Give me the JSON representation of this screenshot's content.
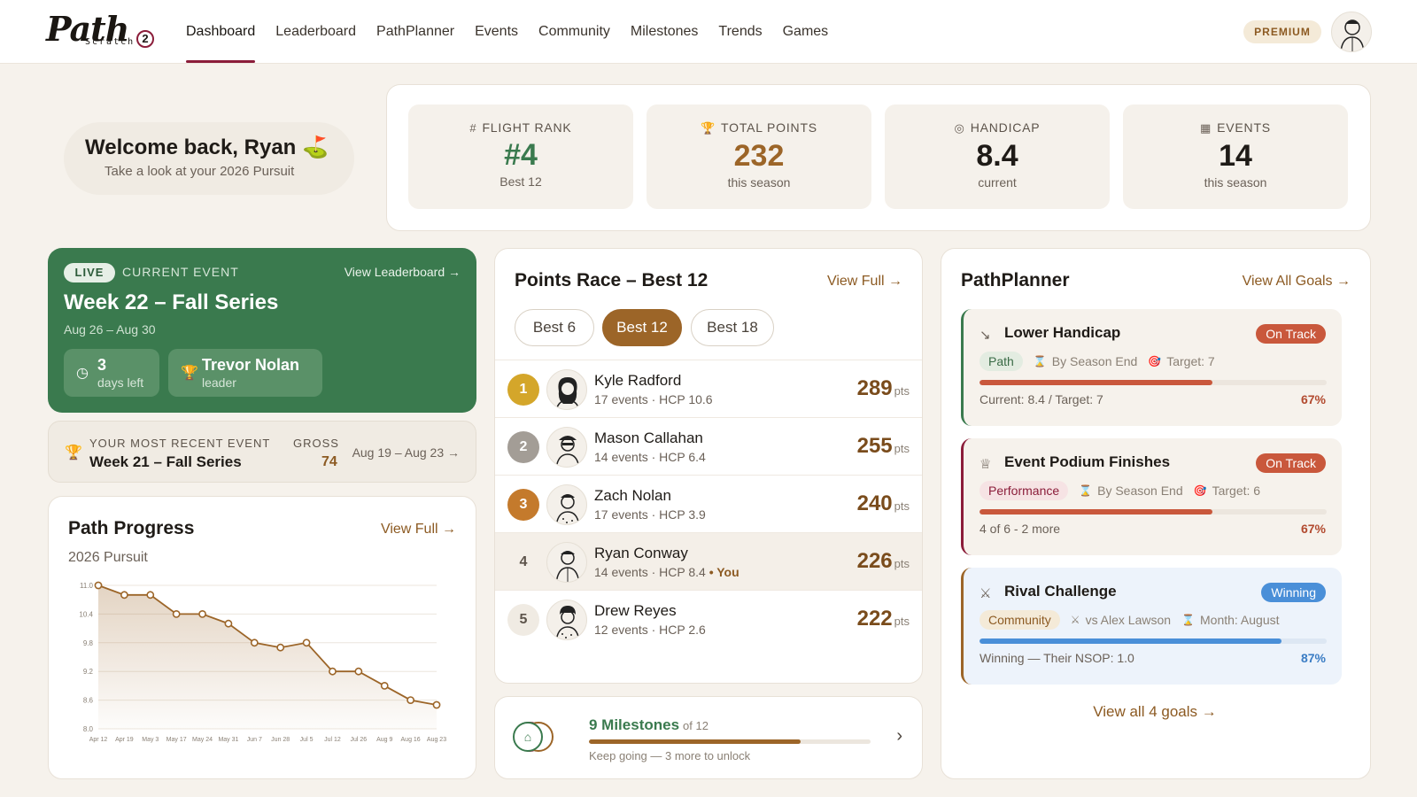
{
  "app": {
    "logo_text": "Path",
    "logo_sub": "Scratch",
    "logo_num": "2"
  },
  "nav": {
    "items": [
      {
        "label": "Dashboard",
        "active": true
      },
      {
        "label": "Leaderboard"
      },
      {
        "label": "PathPlanner"
      },
      {
        "label": "Events"
      },
      {
        "label": "Community"
      },
      {
        "label": "Milestones"
      },
      {
        "label": "Trends"
      },
      {
        "label": "Games"
      }
    ],
    "premium_label": "PREMIUM"
  },
  "welcome": {
    "title": "Welcome back, Ryan",
    "emoji": "⛳",
    "subtitle": "Take a look at your 2026 Pursuit"
  },
  "stats": [
    {
      "icon": "#",
      "label": "FLIGHT RANK",
      "value": "#4",
      "sub": "Best 12",
      "color": "#3a7a4e"
    },
    {
      "icon": "🏆",
      "label": "TOTAL POINTS",
      "value": "232",
      "sub": "this season",
      "color": "#9c6528"
    },
    {
      "icon": "◎",
      "label": "HANDICAP",
      "value": "8.4",
      "sub": "current",
      "color": "#1f1b17"
    },
    {
      "icon": "▦",
      "label": "EVENTS",
      "value": "14",
      "sub": "this season",
      "color": "#1f1b17"
    }
  ],
  "current_event": {
    "live_label": "LIVE",
    "section_label": "CURRENT EVENT",
    "view_link": "View Leaderboard →",
    "title": "Week 22 – Fall Series",
    "dates": "Aug 26 – Aug 30",
    "days_value": "3",
    "days_label": "days left",
    "leader_name": "Trevor Nolan",
    "leader_label": "leader"
  },
  "recent_event": {
    "label": "YOUR MOST RECENT EVENT",
    "name": "Week 21 – Fall Series",
    "gross_label": "GROSS",
    "gross_value": "74",
    "dates": "Aug 19 – Aug 23 →"
  },
  "path_progress": {
    "title": "Path Progress",
    "link": "View Full →",
    "subtitle": "2026 Pursuit"
  },
  "chart_data": {
    "type": "line",
    "x": [
      "Apr 12",
      "Apr 19",
      "May 3",
      "May 17",
      "May 24",
      "May 31",
      "Jun 7",
      "Jun 28",
      "Jul 5",
      "Jul 12",
      "Jul 26",
      "Aug 9",
      "Aug 16",
      "Aug 23"
    ],
    "values": [
      11.0,
      10.8,
      10.8,
      10.4,
      10.4,
      10.2,
      9.8,
      9.7,
      9.8,
      9.2,
      9.2,
      8.9,
      8.6,
      8.5
    ],
    "yticks": [
      "11.0",
      "10.4",
      "9.8",
      "9.2",
      "8.6",
      "8.0"
    ],
    "ylim": [
      8.0,
      11.0
    ],
    "grid": true,
    "color": "#9c6528"
  },
  "points_race": {
    "title": "Points Race – Best 12",
    "link": "View Full →",
    "pills": [
      {
        "label": "Best 6"
      },
      {
        "label": "Best 12",
        "active": true
      },
      {
        "label": "Best 18"
      }
    ],
    "players": [
      {
        "rank": "1",
        "name": "Kyle Radford",
        "meta": "17 events · HCP 10.6",
        "you": "",
        "points": "289",
        "rank_color": "#d4a62a"
      },
      {
        "rank": "2",
        "name": "Mason Callahan",
        "meta": "14 events · HCP 6.4",
        "you": "",
        "points": "255",
        "rank_color": "#a39d96"
      },
      {
        "rank": "3",
        "name": "Zach Nolan",
        "meta": "17 events · HCP 3.9",
        "you": "",
        "points": "240",
        "rank_color": "#c47a2c"
      },
      {
        "rank": "4",
        "name": "Ryan Conway",
        "meta": "14 events · HCP 8.4",
        "you": " • You",
        "points": "226",
        "rank_color": ""
      },
      {
        "rank": "5",
        "name": "Drew Reyes",
        "meta": "12 events · HCP 2.6",
        "you": "",
        "points": "222",
        "rank_color": ""
      }
    ],
    "pts_unit": "pts"
  },
  "milestones": {
    "count": "9 Milestones",
    "of_label": "of 12",
    "progress": 0.75,
    "subtitle": "Keep going — 3 more to unlock",
    "icon": "⌂"
  },
  "pathplanner": {
    "title": "PathPlanner",
    "link": "View All Goals →",
    "goals": [
      {
        "icon": "↘",
        "title": "Lower Handicap",
        "badge": "On Track",
        "badge_color": "#c9583c",
        "tag": "Path",
        "tag_bg": "#e3ece1",
        "tag_color": "#3a6b46",
        "deadline": "By Season End",
        "target": "Target: 7",
        "progress": 0.67,
        "bar_color": "#c9583c",
        "status": "Current: 8.4 / Target: 7",
        "pct": "67%",
        "pct_color": "#b24a2f",
        "border": "#3a7a4e"
      },
      {
        "icon": "♕",
        "title": "Event Podium Finishes",
        "badge": "On Track",
        "badge_color": "#c9583c",
        "tag": "Performance",
        "tag_bg": "#f6e3e4",
        "tag_color": "#8b1d3a",
        "deadline": "By Season End",
        "target": "Target: 6",
        "progress": 0.67,
        "bar_color": "#c9583c",
        "status": "4 of 6 - 2 more",
        "pct": "67%",
        "pct_color": "#b24a2f",
        "border": "#8b1d3a"
      },
      {
        "icon": "⚔",
        "title": "Rival Challenge",
        "badge": "Winning",
        "badge_color": "#4a8fd8",
        "tag": "Community",
        "tag_bg": "#f4ead8",
        "tag_color": "#8c5a22",
        "deadline": "vs Alex Lawson",
        "target": "Month: August",
        "progress": 0.87,
        "bar_color": "#4a8fd8",
        "status": "Winning — Their NSOP: 1.0",
        "pct": "87%",
        "pct_color": "#3a7cc4",
        "border": "#9c6528"
      }
    ],
    "view_all": "View all 4 goals →"
  }
}
